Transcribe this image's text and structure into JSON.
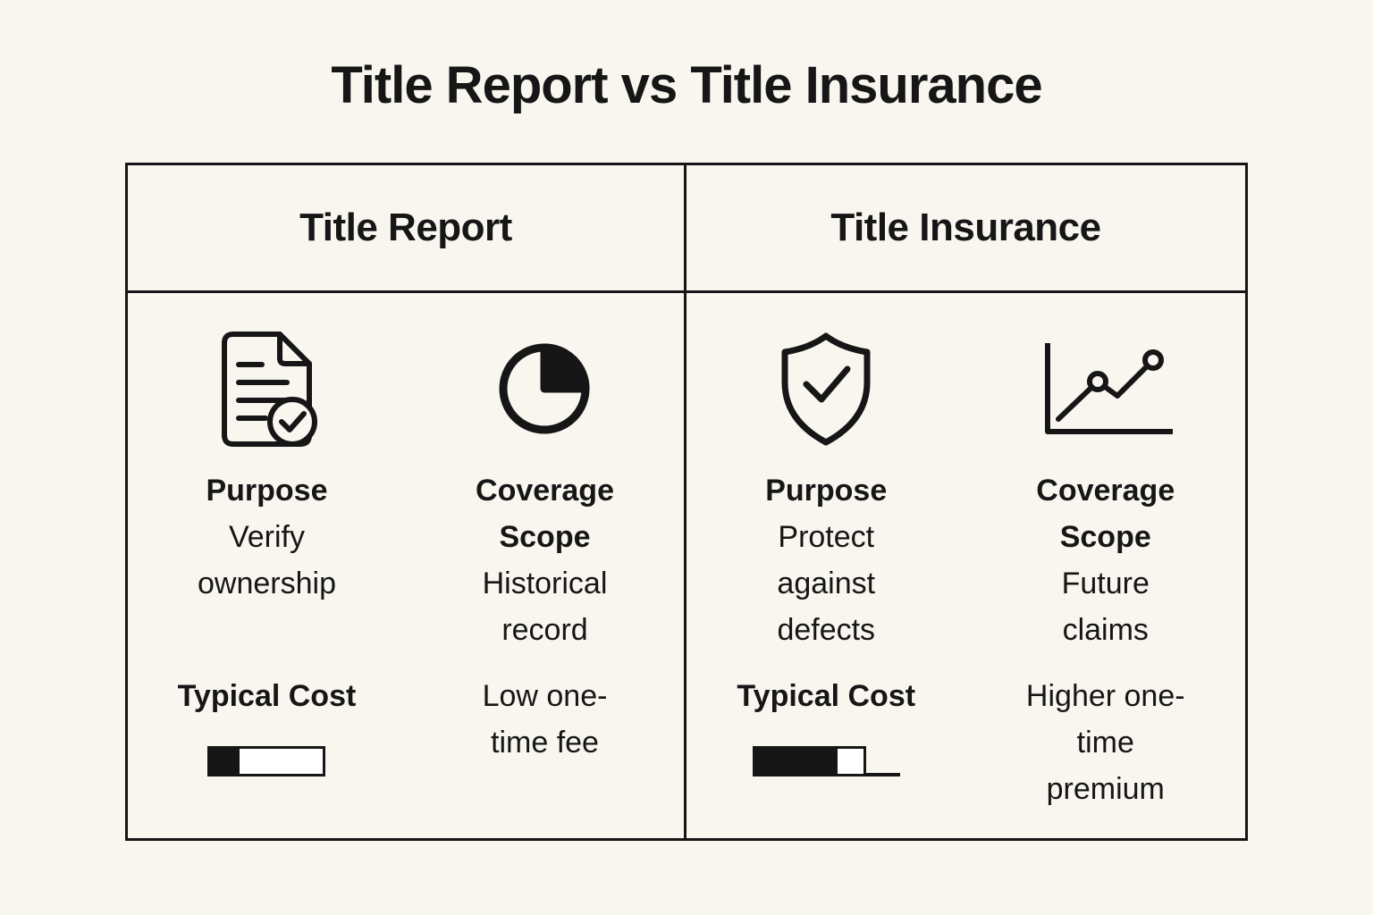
{
  "page": {
    "title": "Title Report vs Title Insurance"
  },
  "colors": {
    "background": "#f8f6ef",
    "ink": "#161616",
    "bar_empty": "#ffffff"
  },
  "table": {
    "columns": [
      {
        "header": "Title Report",
        "icons": [
          "document-check-icon",
          "pie-chart-icon"
        ],
        "purpose_label": "Purpose",
        "purpose_value": "Verify ownership",
        "coverage_label": "Coverage Scope",
        "coverage_value": "Historical record",
        "cost_label": "Typical Cost",
        "cost_value": "Low one-time fee",
        "cost_bar": {
          "level": "low",
          "fill_percent": 25,
          "segments": [
            {
              "type": "filled",
              "percent": 25
            },
            {
              "type": "outlined",
              "percent": 75
            }
          ]
        }
      },
      {
        "header": "Title Insurance",
        "icons": [
          "shield-check-icon",
          "line-chart-icon"
        ],
        "purpose_label": "Purpose",
        "purpose_value": "Protect against defects",
        "coverage_label": "Coverage Scope",
        "coverage_value": "Future claims",
        "cost_label": "Typical Cost",
        "cost_value": "Higher one-time premium",
        "cost_bar": {
          "level": "higher",
          "fill_percent": 56,
          "segments": [
            {
              "type": "filled",
              "percent": 56
            },
            {
              "type": "outlined",
              "percent": 21
            },
            {
              "type": "line",
              "percent": 23
            }
          ]
        }
      }
    ]
  }
}
